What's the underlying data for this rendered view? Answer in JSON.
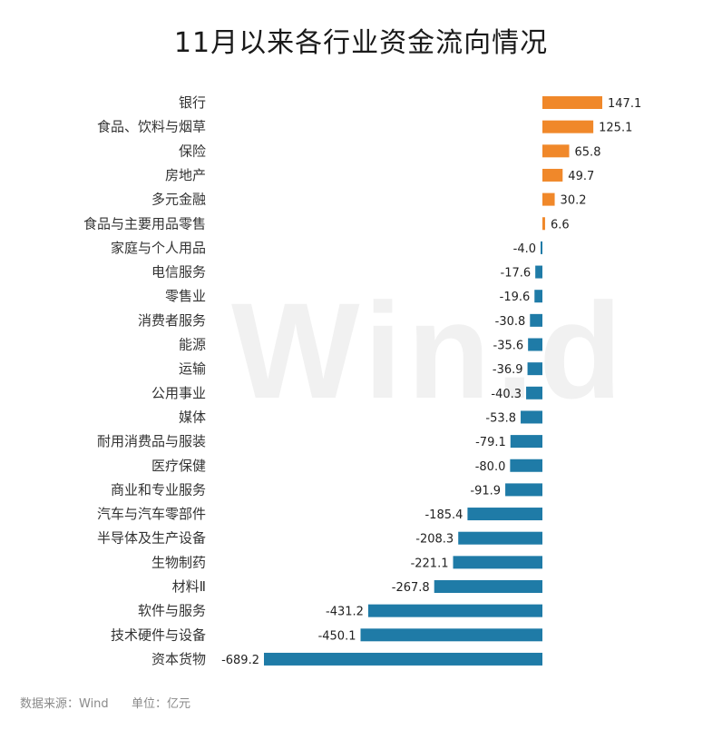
{
  "chart_data": {
    "type": "bar",
    "orientation": "horizontal",
    "title": "11月以来各行业资金流向情况",
    "categories": [
      "银行",
      "食品、饮料与烟草",
      "保险",
      "房地产",
      "多元金融",
      "食品与主要用品零售",
      "家庭与个人用品",
      "电信服务",
      "零售业",
      "消费者服务",
      "能源",
      "运输",
      "公用事业",
      "媒体",
      "耐用消费品与服装",
      "医疗保健",
      "商业和专业服务",
      "汽车与汽车零部件",
      "半导体及生产设备",
      "生物制药",
      "材料Ⅱ",
      "软件与服务",
      "技术硬件与设备",
      "资本货物"
    ],
    "values": [
      147.1,
      125.1,
      65.8,
      49.7,
      30.2,
      6.6,
      -4.0,
      -17.6,
      -19.6,
      -30.8,
      -35.6,
      -36.9,
      -40.3,
      -53.8,
      -79.1,
      -80.0,
      -91.9,
      -185.4,
      -208.3,
      -221.1,
      -267.8,
      -431.2,
      -450.1,
      -689.2
    ],
    "value_labels": [
      "147.1",
      "125.1",
      "65.8",
      "49.7",
      "30.2",
      "6.6",
      "-4.0",
      "-17.6",
      "-19.6",
      "-30.8",
      "-35.6",
      "-36.9",
      "-40.3",
      "-53.8",
      "-79.1",
      "-80.0",
      "-91.9",
      "-185.4",
      "-208.3",
      "-221.1",
      "-267.8",
      "-431.2",
      "-450.1",
      "-689.2"
    ],
    "xlim": [
      -689.2,
      147.1
    ],
    "grid": false,
    "colors": {
      "positive": "#f0882a",
      "negative": "#1f7ba7"
    }
  },
  "watermark": "Win.d",
  "footer": {
    "source": "数据来源：Wind",
    "unit": "单位：亿元"
  }
}
